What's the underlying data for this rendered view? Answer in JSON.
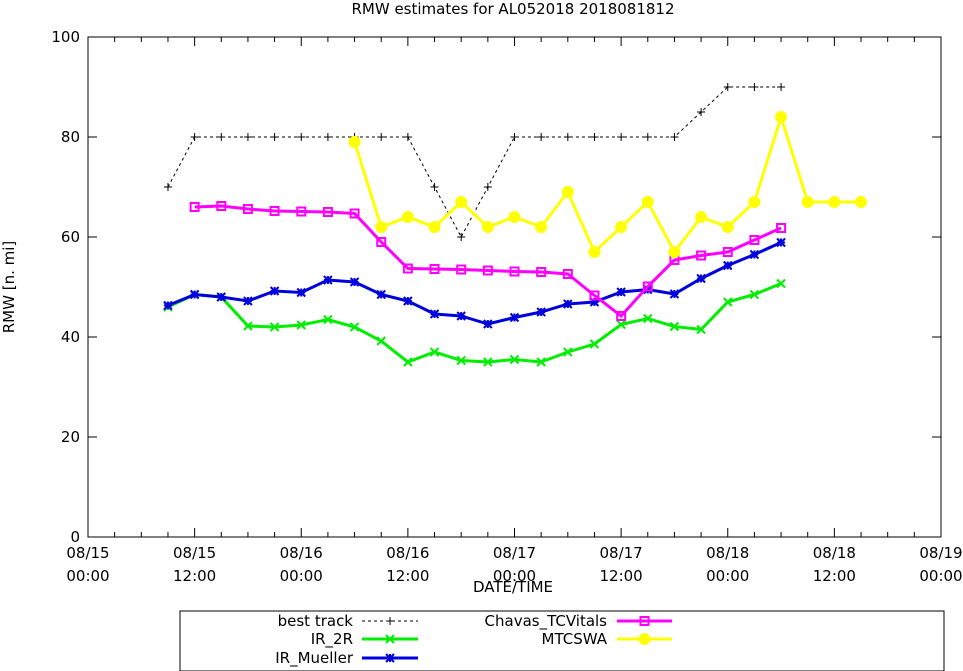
{
  "chart_data": {
    "type": "line",
    "title": "RMW estimates for AL052018 2018081812",
    "xlabel": "DATE/TIME",
    "ylabel": "RMW [n. mi]",
    "xlim_hours": [
      0,
      96
    ],
    "ylim": [
      0,
      100
    ],
    "yticks": [
      0,
      20,
      40,
      60,
      80,
      100
    ],
    "xtick_hours": [
      0,
      12,
      24,
      36,
      48,
      60,
      72,
      84,
      96
    ],
    "xtick_labels": [
      [
        "08/15",
        "00:00"
      ],
      [
        "08/15",
        "12:00"
      ],
      [
        "08/16",
        "00:00"
      ],
      [
        "08/16",
        "12:00"
      ],
      [
        "08/17",
        "00:00"
      ],
      [
        "08/17",
        "12:00"
      ],
      [
        "08/18",
        "00:00"
      ],
      [
        "08/18",
        "12:00"
      ],
      [
        "08/19",
        "00:00"
      ]
    ],
    "grid": false,
    "legend_position": "bottom",
    "series": [
      {
        "name": "best track",
        "color": "#000000",
        "style": "dashed",
        "marker": "plus",
        "x": [
          9,
          12,
          15,
          18,
          21,
          24,
          27,
          30,
          33,
          36,
          39,
          42,
          45,
          48,
          51,
          54,
          57,
          60,
          63,
          66,
          69,
          72,
          75,
          78
        ],
        "y": [
          70,
          80,
          80,
          80,
          80,
          80,
          80,
          80,
          80,
          80,
          70,
          60,
          70,
          80,
          80,
          80,
          80,
          80,
          80,
          80,
          85,
          90,
          90,
          90
        ]
      },
      {
        "name": "IR_2R",
        "color": "#00ee00",
        "style": "solid",
        "marker": "x",
        "x": [
          9,
          12,
          15,
          18,
          21,
          24,
          27,
          30,
          33,
          36,
          39,
          42,
          45,
          48,
          51,
          54,
          57,
          60,
          63,
          66,
          69,
          72,
          75,
          78
        ],
        "y": [
          46,
          48.5,
          48,
          42.2,
          42,
          42.4,
          43.5,
          42,
          39.2,
          35,
          37,
          35.3,
          35,
          35.5,
          35,
          37,
          38.6,
          42.5,
          43.7,
          42.1,
          41.5,
          47,
          48.5,
          50.7
        ]
      },
      {
        "name": "IR_Mueller",
        "color": "#0000dd",
        "style": "solid",
        "marker": "star",
        "x": [
          9,
          12,
          15,
          18,
          21,
          24,
          27,
          30,
          33,
          36,
          39,
          42,
          45,
          48,
          51,
          54,
          57,
          60,
          63,
          66,
          69,
          72,
          75,
          78
        ],
        "y": [
          46.3,
          48.5,
          48,
          47.2,
          49.2,
          48.9,
          51.4,
          51,
          48.5,
          47.2,
          44.6,
          44.2,
          42.6,
          43.9,
          45,
          46.6,
          47,
          49,
          49.5,
          48.6,
          51.7,
          54.3,
          56.5,
          58.9
        ]
      },
      {
        "name": "Chavas_TCVitals",
        "color": "#ff00ff",
        "style": "solid",
        "marker": "square",
        "x": [
          12,
          15,
          18,
          21,
          24,
          27,
          30,
          33,
          36,
          39,
          42,
          45,
          48,
          51,
          54,
          57,
          60,
          63,
          66,
          69,
          72,
          75,
          78
        ],
        "y": [
          66,
          66.2,
          65.6,
          65.2,
          65.1,
          65,
          64.7,
          59,
          53.7,
          53.6,
          53.5,
          53.3,
          53.1,
          53,
          52.6,
          48.3,
          44.2,
          50.1,
          55.4,
          56.3,
          57,
          59.4,
          61.8
        ]
      },
      {
        "name": "MTCSWA",
        "color": "#ffff00",
        "style": "solid",
        "marker": "circle",
        "x": [
          30,
          33,
          36,
          39,
          42,
          45,
          48,
          51,
          54,
          57,
          60,
          63,
          66,
          69,
          72,
          75,
          78,
          81,
          84,
          87
        ],
        "y": [
          79,
          62,
          64,
          62,
          67,
          62,
          64,
          62,
          69,
          57,
          62,
          67,
          57,
          64,
          62,
          67,
          84,
          67,
          67,
          67
        ]
      }
    ]
  }
}
